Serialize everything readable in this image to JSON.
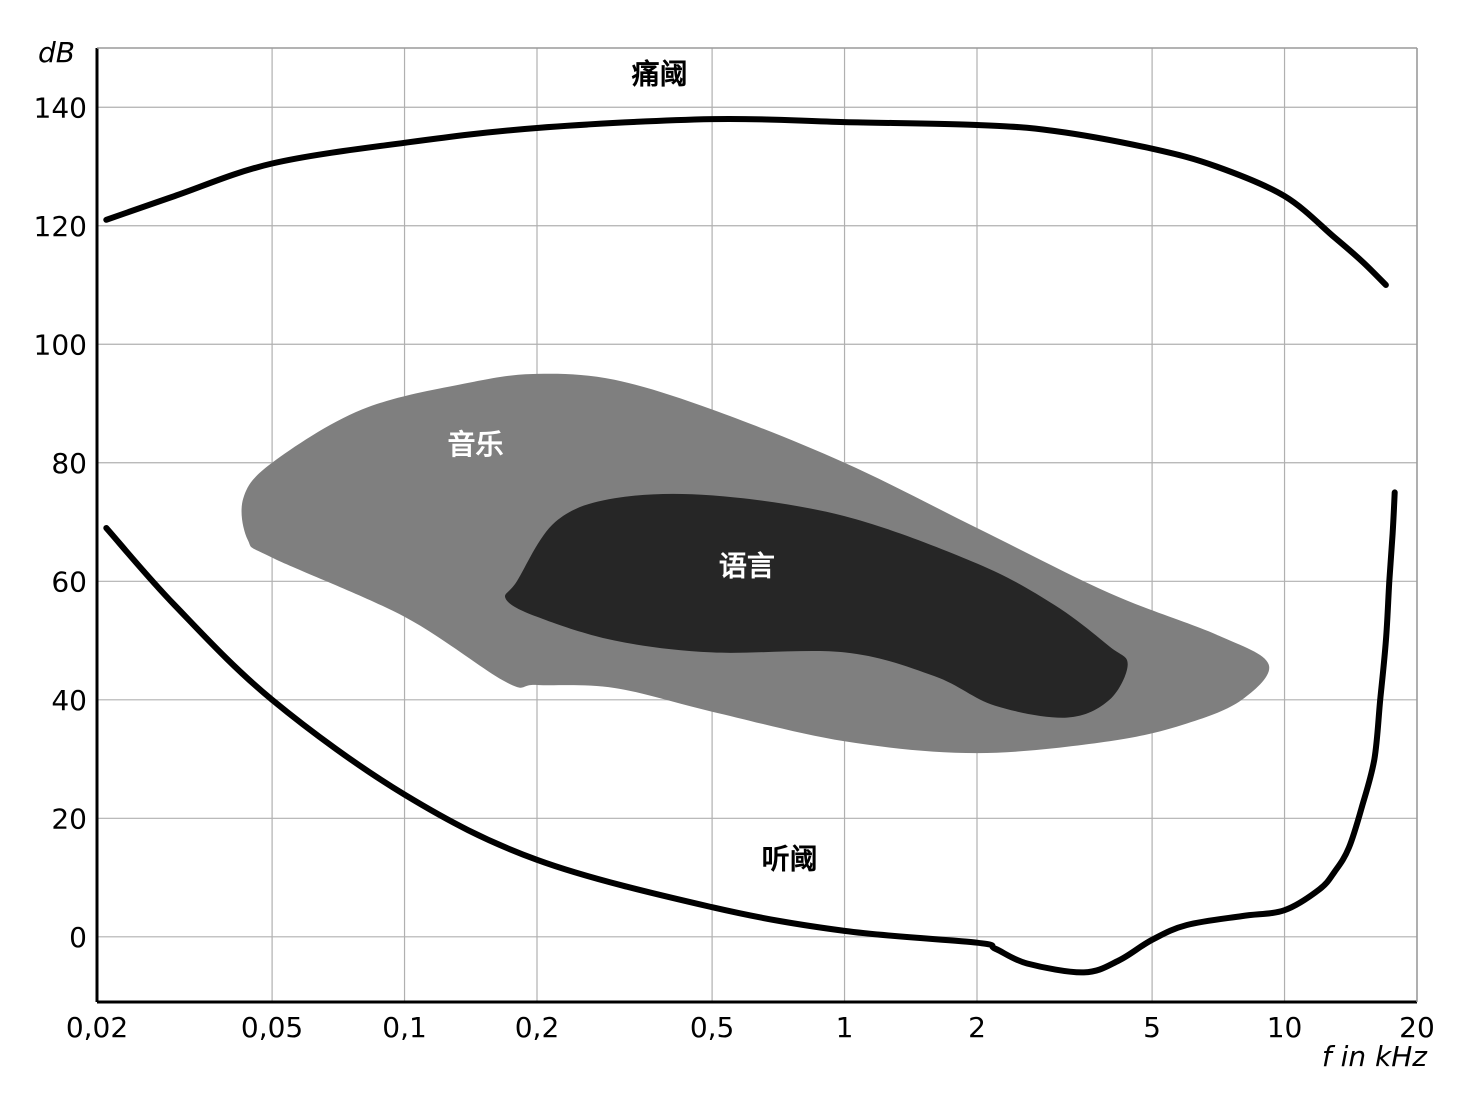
{
  "chart_data": {
    "type": "area",
    "x_scale": "log",
    "grid": true,
    "xlabel": "f in kHz",
    "ylabel": "dB",
    "xlim": [
      0.02,
      20
    ],
    "ylim": [
      -11,
      150
    ],
    "x_ticks": [
      {
        "value": 0.02,
        "label": "0,02"
      },
      {
        "value": 0.05,
        "label": "0,05"
      },
      {
        "value": 0.1,
        "label": "0,1"
      },
      {
        "value": 0.2,
        "label": "0,2"
      },
      {
        "value": 0.5,
        "label": "0,5"
      },
      {
        "value": 1,
        "label": "1"
      },
      {
        "value": 2,
        "label": "2"
      },
      {
        "value": 5,
        "label": "5"
      },
      {
        "value": 10,
        "label": "10"
      },
      {
        "value": 20,
        "label": "20"
      }
    ],
    "y_ticks": [
      {
        "value": 0,
        "label": "0"
      },
      {
        "value": 20,
        "label": "20"
      },
      {
        "value": 40,
        "label": "40"
      },
      {
        "value": 60,
        "label": "60"
      },
      {
        "value": 80,
        "label": "80"
      },
      {
        "value": 100,
        "label": "100"
      },
      {
        "value": 120,
        "label": "120"
      },
      {
        "value": 140,
        "label": "140"
      }
    ],
    "regions": [
      {
        "name": "音乐",
        "color": "#7f7f7f",
        "label_color": "#ffffff",
        "label_at": [
          0.145,
          81.5
        ],
        "points": [
          [
            0.05,
            80
          ],
          [
            0.08,
            89
          ],
          [
            0.14,
            93.5
          ],
          [
            0.2,
            95
          ],
          [
            0.3,
            94
          ],
          [
            0.5,
            89
          ],
          [
            1,
            80
          ],
          [
            2,
            69
          ],
          [
            4,
            58
          ],
          [
            7,
            51
          ],
          [
            9.2,
            46
          ],
          [
            8,
            40
          ],
          [
            6,
            36
          ],
          [
            4,
            33
          ],
          [
            2,
            31
          ],
          [
            1,
            33
          ],
          [
            0.5,
            38
          ],
          [
            0.3,
            42
          ],
          [
            0.2,
            42.5
          ],
          [
            0.17,
            43
          ],
          [
            0.1,
            54
          ],
          [
            0.05,
            64
          ],
          [
            0.044,
            67
          ],
          [
            0.043,
            74
          ]
        ]
      },
      {
        "name": "语言",
        "color": "#262626",
        "label_color": "#ffffff",
        "label_at": [
          0.6,
          61
        ],
        "points": [
          [
            0.18,
            60
          ],
          [
            0.22,
            70
          ],
          [
            0.3,
            74
          ],
          [
            0.5,
            74.5
          ],
          [
            1,
            71
          ],
          [
            2,
            63
          ],
          [
            3,
            56
          ],
          [
            4,
            49
          ],
          [
            4.4,
            46
          ],
          [
            4,
            40
          ],
          [
            3.2,
            37
          ],
          [
            2.2,
            39
          ],
          [
            1.6,
            44
          ],
          [
            1,
            48
          ],
          [
            0.5,
            48
          ],
          [
            0.3,
            50
          ],
          [
            0.2,
            54
          ],
          [
            0.17,
            57
          ]
        ]
      }
    ],
    "series": [
      {
        "name": "痛阈",
        "color": "#000000",
        "label_at": [
          0.38,
          144
        ],
        "points": [
          [
            0.021,
            121
          ],
          [
            0.03,
            125
          ],
          [
            0.05,
            130.5
          ],
          [
            0.1,
            134
          ],
          [
            0.2,
            136.5
          ],
          [
            0.5,
            138
          ],
          [
            1,
            137.5
          ],
          [
            2,
            137
          ],
          [
            3,
            136
          ],
          [
            5,
            133
          ],
          [
            7,
            130
          ],
          [
            10,
            125
          ],
          [
            13,
            118
          ],
          [
            15,
            114
          ],
          [
            17,
            110
          ]
        ]
      },
      {
        "name": "听阈",
        "color": "#000000",
        "label_at": [
          0.75,
          11.5
        ],
        "points": [
          [
            0.021,
            69
          ],
          [
            0.03,
            56
          ],
          [
            0.05,
            40
          ],
          [
            0.1,
            24
          ],
          [
            0.2,
            13
          ],
          [
            0.5,
            5
          ],
          [
            1,
            1
          ],
          [
            2,
            -1
          ],
          [
            2.2,
            -2
          ],
          [
            2.6,
            -4.5
          ],
          [
            3.5,
            -6
          ],
          [
            4.2,
            -4
          ],
          [
            5,
            -0.5
          ],
          [
            6,
            2
          ],
          [
            8,
            3.5
          ],
          [
            10,
            4.5
          ],
          [
            12,
            8
          ],
          [
            13,
            11
          ],
          [
            14,
            15
          ],
          [
            15,
            22
          ],
          [
            16,
            30
          ],
          [
            16.5,
            40
          ],
          [
            17,
            50
          ],
          [
            17.3,
            60
          ],
          [
            17.6,
            68
          ],
          [
            17.8,
            75
          ]
        ]
      }
    ]
  }
}
